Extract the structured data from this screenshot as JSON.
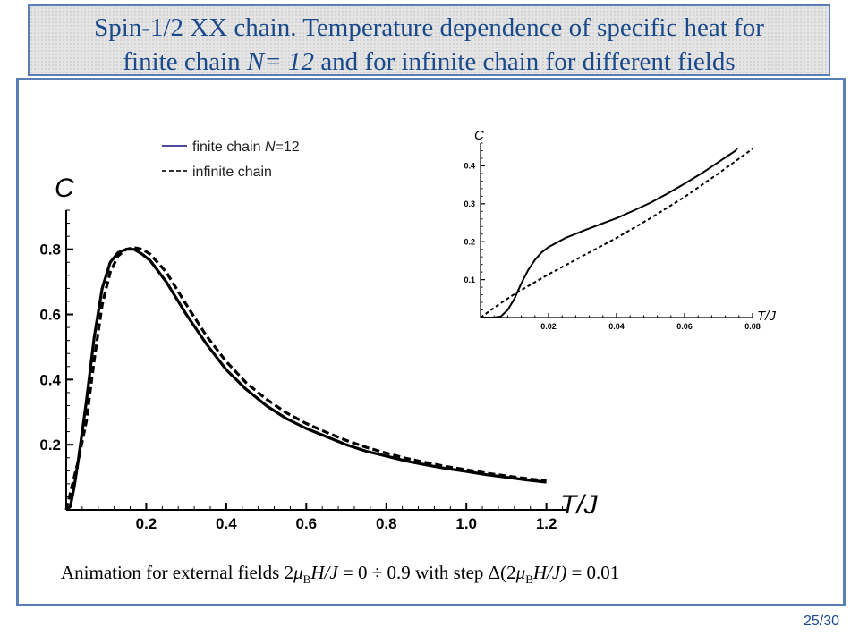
{
  "title": {
    "line1": "Spin-1/2 XX chain. Temperature dependence of specific heat for",
    "line2_prefix": "finite chain ",
    "line2_var": "N= 12",
    "line2_suffix": " and for infinite chain for different fields"
  },
  "caption": {
    "prefix": "Animation for external fields  2",
    "mu": "μ",
    "sub_b": "B",
    "h_over_j": "H/J",
    "range": " = 0 ÷ 0.9  with step  Δ(2",
    "mu2": "μ",
    "sub_b2": "B",
    "h_over_j2": "H/J)",
    "step": " = 0.01"
  },
  "page_number": "25/30",
  "chart_data": [
    {
      "type": "line",
      "xlabel": "T/J",
      "ylabel": "C",
      "xlim": [
        0,
        1.25
      ],
      "ylim": [
        0,
        0.92
      ],
      "xticks": [
        0.2,
        0.4,
        0.6,
        0.8,
        1.0,
        1.2
      ],
      "xtick_labels": [
        "0.2",
        "0.4",
        "0.6",
        "0.8",
        "1.0",
        "1.2"
      ],
      "yticks": [
        0.2,
        0.4,
        0.6,
        0.8
      ],
      "ytick_labels": [
        "0.2",
        "0.4",
        "0.6",
        "0.8"
      ],
      "legend": {
        "placement": "top-center",
        "entries": [
          {
            "label": "finite chain ",
            "var": "N",
            "suffix": "=12",
            "style": "solid",
            "color": "#4a4aa0"
          },
          {
            "label": "infinite chain",
            "var": "",
            "suffix": "",
            "style": "dashed",
            "color": "#333333"
          }
        ]
      },
      "series": [
        {
          "name": "finite chain N=12",
          "style": "solid",
          "x": [
            0.0,
            0.01,
            0.02,
            0.03,
            0.05,
            0.07,
            0.09,
            0.11,
            0.13,
            0.15,
            0.17,
            0.19,
            0.21,
            0.25,
            0.3,
            0.35,
            0.4,
            0.45,
            0.5,
            0.55,
            0.6,
            0.65,
            0.7,
            0.75,
            0.8,
            0.85,
            0.9,
            0.95,
            1.0,
            1.05,
            1.1,
            1.15,
            1.2
          ],
          "y": [
            0.0,
            0.01,
            0.07,
            0.15,
            0.33,
            0.53,
            0.68,
            0.76,
            0.79,
            0.8,
            0.8,
            0.785,
            0.765,
            0.7,
            0.6,
            0.51,
            0.43,
            0.37,
            0.32,
            0.28,
            0.25,
            0.225,
            0.2,
            0.18,
            0.165,
            0.15,
            0.138,
            0.127,
            0.118,
            0.108,
            0.1,
            0.092,
            0.085
          ]
        },
        {
          "name": "infinite chain",
          "style": "dashed",
          "x": [
            0.0,
            0.01,
            0.02,
            0.03,
            0.05,
            0.07,
            0.09,
            0.11,
            0.13,
            0.15,
            0.17,
            0.19,
            0.21,
            0.25,
            0.3,
            0.35,
            0.4,
            0.45,
            0.5,
            0.55,
            0.6,
            0.65,
            0.7,
            0.75,
            0.8,
            0.85,
            0.9,
            0.95,
            1.0,
            1.05,
            1.1,
            1.15,
            1.2
          ],
          "y": [
            0.0,
            0.05,
            0.1,
            0.15,
            0.27,
            0.46,
            0.63,
            0.73,
            0.78,
            0.8,
            0.805,
            0.8,
            0.785,
            0.73,
            0.63,
            0.535,
            0.455,
            0.39,
            0.34,
            0.298,
            0.265,
            0.238,
            0.213,
            0.192,
            0.174,
            0.158,
            0.145,
            0.133,
            0.123,
            0.113,
            0.104,
            0.096,
            0.089
          ]
        }
      ]
    },
    {
      "type": "line",
      "xlabel": "T/J",
      "ylabel": "C",
      "xlim": [
        0,
        0.08
      ],
      "ylim": [
        0,
        0.46
      ],
      "xticks": [
        0.02,
        0.04,
        0.06,
        0.08
      ],
      "xtick_labels": [
        "0.02",
        "0.04",
        "0.06",
        "0.08"
      ],
      "yticks": [
        0.1,
        0.2,
        0.3,
        0.4
      ],
      "ytick_labels": [
        "0.1",
        "0.2",
        "0.3",
        "0.4"
      ],
      "series": [
        {
          "name": "finite chain N=12",
          "style": "solid",
          "x": [
            0.0,
            0.004,
            0.006,
            0.008,
            0.01,
            0.012,
            0.014,
            0.016,
            0.018,
            0.02,
            0.025,
            0.03,
            0.035,
            0.04,
            0.045,
            0.05,
            0.055,
            0.06,
            0.065,
            0.07,
            0.075,
            0.0755
          ],
          "y": [
            0.0,
            0.0,
            0.003,
            0.02,
            0.05,
            0.09,
            0.125,
            0.152,
            0.172,
            0.186,
            0.21,
            0.228,
            0.245,
            0.262,
            0.282,
            0.303,
            0.327,
            0.353,
            0.38,
            0.41,
            0.44,
            0.447
          ]
        },
        {
          "name": "infinite chain",
          "style": "dashed",
          "x": [
            0.0,
            0.005,
            0.01,
            0.02,
            0.03,
            0.04,
            0.05,
            0.06,
            0.07,
            0.08
          ],
          "y": [
            0.0,
            0.032,
            0.062,
            0.114,
            0.162,
            0.21,
            0.262,
            0.318,
            0.38,
            0.445
          ]
        }
      ]
    }
  ]
}
